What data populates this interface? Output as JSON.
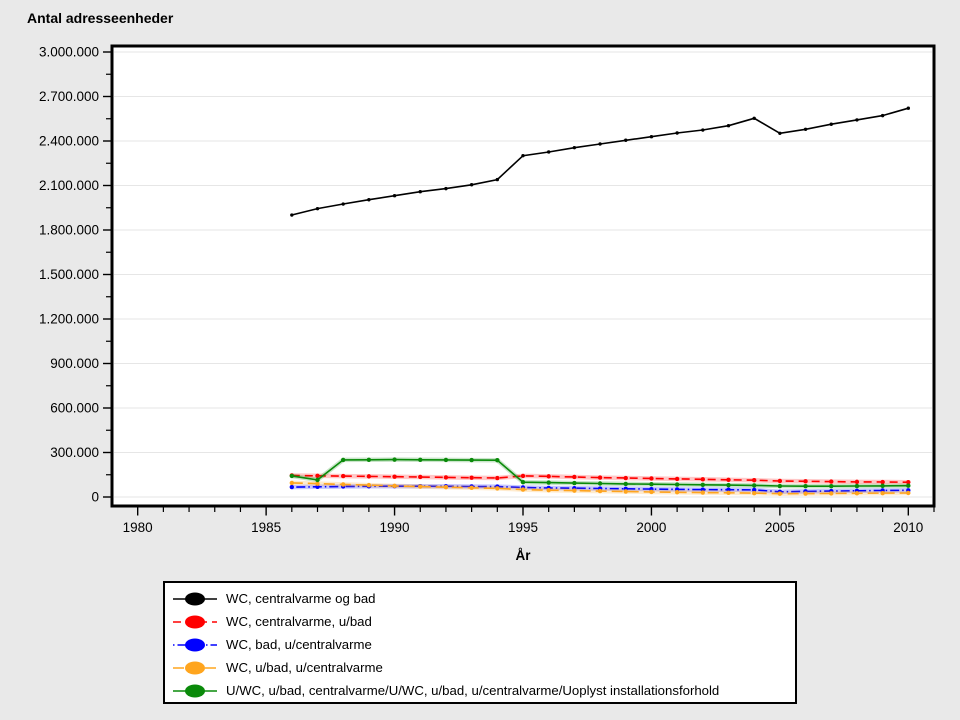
{
  "chart_data": {
    "type": "line",
    "title": "Antal adresseenheder",
    "xlabel": "År",
    "ylabel": "",
    "xlim": [
      1979,
      2011
    ],
    "ylim": [
      0,
      3000000
    ],
    "grid": "horizontal-major",
    "legend_position": "bottom",
    "x": [
      1986,
      1987,
      1988,
      1989,
      1990,
      1991,
      1992,
      1993,
      1994,
      1995,
      1996,
      1997,
      1998,
      1999,
      2000,
      2001,
      2002,
      2003,
      2004,
      2005,
      2006,
      2007,
      2008,
      2009,
      2010
    ],
    "x_major_ticks": [
      1980,
      1985,
      1990,
      1995,
      2000,
      2005,
      2010
    ],
    "x_tick_labels": [
      "1980",
      "1985",
      "1990",
      "1995",
      "2000",
      "2005",
      "2010"
    ],
    "y_major_ticks": [
      0,
      300000,
      600000,
      900000,
      1200000,
      1500000,
      1800000,
      2100000,
      2400000,
      2700000,
      3000000
    ],
    "y_tick_labels": [
      "0",
      "300.000",
      "600.000",
      "900.000",
      "1.200.000",
      "1.500.000",
      "1.800.000",
      "2.100.000",
      "2.400.000",
      "2.700.000",
      "3.000.000"
    ],
    "series": [
      {
        "name": "WC, centralvarme og bad",
        "color": "#000000",
        "dash": "solid",
        "marker": "dot",
        "values": [
          1901000,
          1944000,
          1975000,
          2004000,
          2031000,
          2058000,
          2079000,
          2105000,
          2140000,
          2301000,
          2326000,
          2355000,
          2380000,
          2405000,
          2429000,
          2454000,
          2474000,
          2503000,
          2553000,
          2452000,
          2479000,
          2513000,
          2542000,
          2571000,
          2621000
        ]
      },
      {
        "name": "WC, centralvarme, u/bad",
        "color": "#ff0000",
        "dash": "dash",
        "marker": "dot",
        "values": [
          145000,
          143000,
          141000,
          139000,
          137000,
          135000,
          132000,
          130000,
          128000,
          142000,
          139000,
          135000,
          131000,
          128000,
          125000,
          122000,
          119000,
          116000,
          113000,
          108000,
          106000,
          104000,
          102000,
          101000,
          100000
        ]
      },
      {
        "name": "WC, bad, u/centralvarme",
        "color": "#0000ff",
        "dash": "dashdot",
        "marker": "dot",
        "values": [
          67000,
          69000,
          71000,
          72000,
          73000,
          73000,
          72000,
          71000,
          70000,
          64000,
          61000,
          59000,
          57000,
          55000,
          53000,
          51000,
          50000,
          49000,
          48000,
          35000,
          38000,
          40000,
          42000,
          44000,
          45000
        ]
      },
      {
        "name": "WC, u/bad, u/centralvarme",
        "color": "#ffa51e",
        "dash": "longdash",
        "marker": "dot",
        "values": [
          95000,
          90000,
          85000,
          80000,
          75000,
          70000,
          66000,
          62000,
          58000,
          50000,
          46000,
          43000,
          40000,
          37000,
          34000,
          32000,
          30000,
          28000,
          26000,
          22000,
          23000,
          24000,
          25000,
          26000,
          27000
        ]
      },
      {
        "name": "U/WC, u/bad, centralvarme/U/WC, u/bad, u/centralvarme/Uoplyst installationsforhold",
        "color": "#0a8a0a",
        "dash": "solid",
        "marker": "dot",
        "values": [
          142000,
          115000,
          250000,
          251000,
          252000,
          251000,
          250000,
          249000,
          248000,
          100000,
          97000,
          94000,
          91000,
          88000,
          86000,
          84000,
          82000,
          80000,
          78000,
          74000,
          73000,
          73000,
          74000,
          75000,
          76000
        ]
      }
    ]
  },
  "colors": {
    "page_bg": "#e9e9e9",
    "plot_bg": "#ffffff",
    "grid": "#e6e6e6",
    "axis": "#000000"
  }
}
